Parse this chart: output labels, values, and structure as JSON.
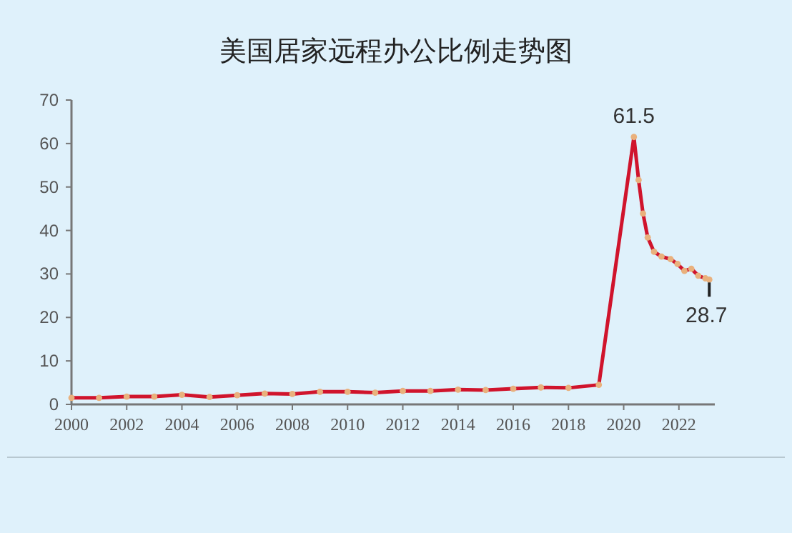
{
  "chart_data": {
    "type": "line",
    "title": "美国居家远程办公比例走势图",
    "series": [
      {
        "color": "#d0142c",
        "x": [
          2000,
          2001,
          2002,
          2003,
          2004,
          2005,
          2006,
          2007,
          2008,
          2009,
          2010,
          2011,
          2012,
          2013,
          2014,
          2015,
          2016,
          2017,
          2018,
          2019.1,
          2020.37,
          2020.54,
          2020.7,
          2020.87,
          2021.1,
          2021.37,
          2021.7,
          2021.95,
          2022.2,
          2022.45,
          2022.7,
          2022.96,
          2023.1
        ],
        "values": [
          1.5,
          1.5,
          1.8,
          1.8,
          2.2,
          1.7,
          2.1,
          2.5,
          2.4,
          2.9,
          2.9,
          2.7,
          3.1,
          3.1,
          3.4,
          3.3,
          3.6,
          3.9,
          3.8,
          4.5,
          61.5,
          51.6,
          43.9,
          38.4,
          35.1,
          34.0,
          33.4,
          32.3,
          30.7,
          31.2,
          29.6,
          29.0,
          28.7
        ]
      }
    ],
    "xlim": [
      2000,
      2023.3
    ],
    "xticks": [
      2000,
      2002,
      2004,
      2006,
      2008,
      2010,
      2012,
      2014,
      2016,
      2018,
      2020,
      2022
    ],
    "ylim": [
      0,
      70
    ],
    "yticks": [
      0,
      10,
      20,
      30,
      40,
      50,
      60,
      70
    ],
    "marker": "circle",
    "grid": false,
    "annotations": [
      {
        "text": "61.5",
        "x": 2020.37,
        "y": 61.5
      },
      {
        "text": "28.7",
        "x": 2023.1,
        "y": 28.7
      }
    ]
  }
}
